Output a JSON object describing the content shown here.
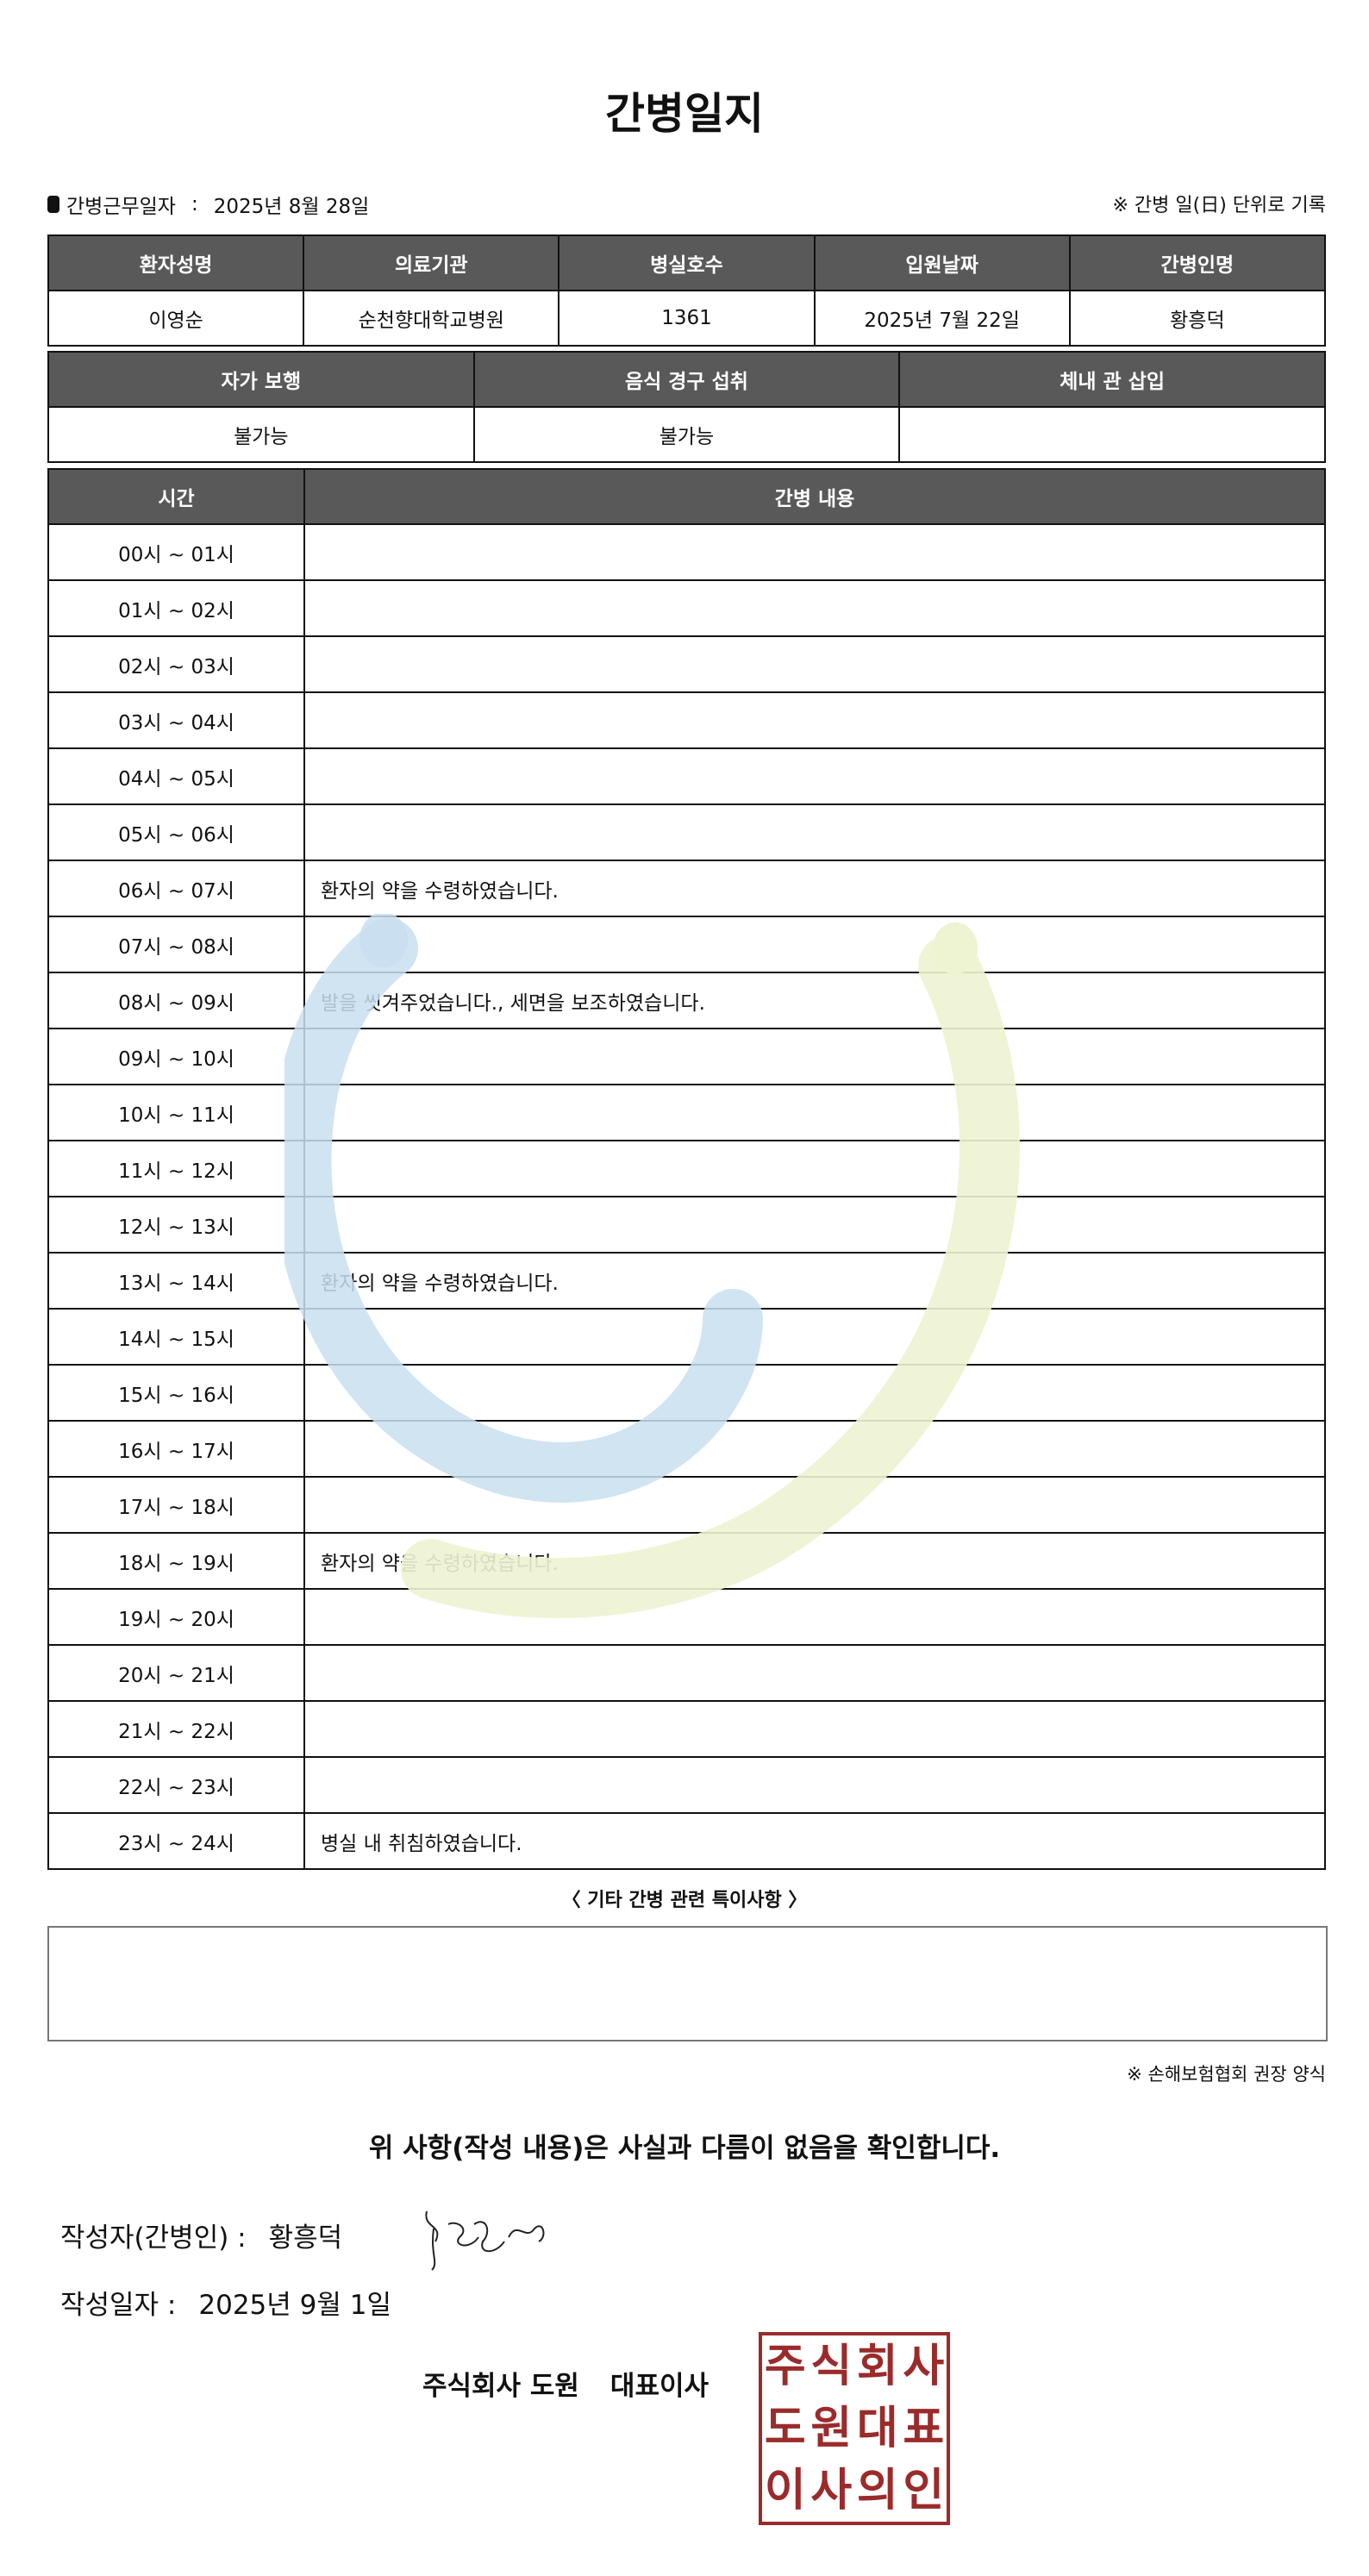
{
  "title": "간병일지",
  "work_date": {
    "label": "간병근무일자",
    "separator": ":",
    "value": "2025년 8월 28일"
  },
  "unit_note": "※ 간병 일(日) 단위로 기록",
  "patient_table": {
    "headers": [
      "환자성명",
      "의료기관",
      "병실호수",
      "입원날짜",
      "간병인명"
    ],
    "values": [
      "이영순",
      "순천향대학교병원",
      "1361",
      "2025년 7월 22일",
      "황흥덕"
    ]
  },
  "status_table": {
    "headers": [
      "자가 보행",
      "음식 경구 섭취",
      "체내 관 삽입"
    ],
    "values": [
      "불가능",
      "불가능",
      ""
    ]
  },
  "log_table": {
    "headers": [
      "시간",
      "간병 내용"
    ],
    "rows": [
      {
        "time": "00시 ~ 01시",
        "content": ""
      },
      {
        "time": "01시 ~ 02시",
        "content": ""
      },
      {
        "time": "02시 ~ 03시",
        "content": ""
      },
      {
        "time": "03시 ~ 04시",
        "content": ""
      },
      {
        "time": "04시 ~ 05시",
        "content": ""
      },
      {
        "time": "05시 ~ 06시",
        "content": ""
      },
      {
        "time": "06시 ~ 07시",
        "content": "환자의 약을 수령하였습니다."
      },
      {
        "time": "07시 ~ 08시",
        "content": ""
      },
      {
        "time": "08시 ~ 09시",
        "content": "발을 씻겨주었습니다., 세면을 보조하였습니다."
      },
      {
        "time": "09시 ~ 10시",
        "content": ""
      },
      {
        "time": "10시 ~ 11시",
        "content": ""
      },
      {
        "time": "11시 ~ 12시",
        "content": ""
      },
      {
        "time": "12시 ~ 13시",
        "content": ""
      },
      {
        "time": "13시 ~ 14시",
        "content": "환자의 약을 수령하였습니다."
      },
      {
        "time": "14시 ~ 15시",
        "content": ""
      },
      {
        "time": "15시 ~ 16시",
        "content": ""
      },
      {
        "time": "16시 ~ 17시",
        "content": ""
      },
      {
        "time": "17시 ~ 18시",
        "content": ""
      },
      {
        "time": "18시 ~ 19시",
        "content": "환자의 약을 수령하였습니다."
      },
      {
        "time": "19시 ~ 20시",
        "content": ""
      },
      {
        "time": "20시 ~ 21시",
        "content": ""
      },
      {
        "time": "21시 ~ 22시",
        "content": ""
      },
      {
        "time": "22시 ~ 23시",
        "content": ""
      },
      {
        "time": "23시 ~ 24시",
        "content": "병실 내 취침하였습니다."
      }
    ]
  },
  "notes": {
    "title": "〈 기타 간병 관련 특이사항 〉",
    "value": ""
  },
  "form_note": "※ 손해보험협회 권장 양식",
  "confirmation": "위 사항(작성 내용)은 사실과 다름이 없음을 확인합니다.",
  "writer": {
    "label": "작성자(간병인) :",
    "name": "황흥덕"
  },
  "written_date": {
    "label": "작성일자 :",
    "value": "2025년 9월 1일"
  },
  "company": {
    "name": "주식회사 도원",
    "role": "대표이사"
  },
  "stamp": {
    "text": "주식회사도원대표이사의인",
    "color": "#9b2b2b"
  },
  "colors": {
    "header_bg": "#595959",
    "watermark_blue": "#c9dff0",
    "watermark_green": "#eef3d2"
  }
}
